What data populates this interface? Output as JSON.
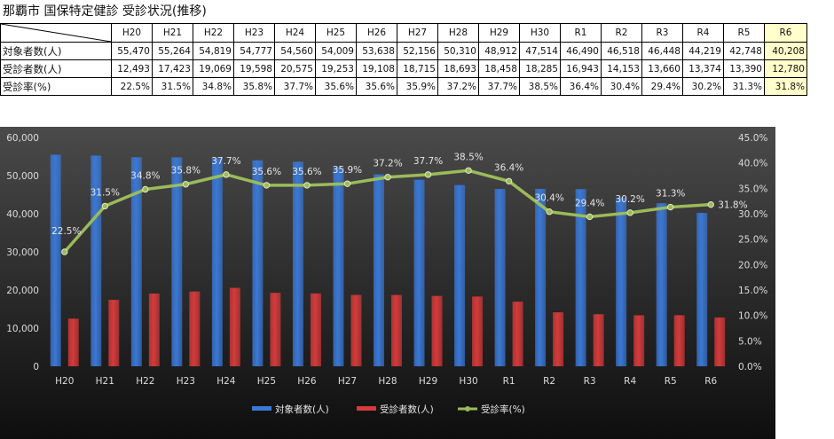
{
  "title": "那覇市 国保特定健診 受診状況(推移)",
  "table": {
    "years": [
      "H20",
      "H21",
      "H22",
      "H23",
      "H24",
      "H25",
      "H26",
      "H27",
      "H28",
      "H29",
      "H30",
      "R1",
      "R2",
      "R3",
      "R4",
      "R5",
      "R6"
    ],
    "rows": [
      {
        "label": "対象者数(人)",
        "values": [
          "55,470",
          "55,264",
          "54,819",
          "54,777",
          "54,560",
          "54,009",
          "53,638",
          "52,156",
          "50,310",
          "48,912",
          "47,514",
          "46,490",
          "46,518",
          "46,448",
          "44,219",
          "42,748",
          "40,208"
        ]
      },
      {
        "label": "受診者数(人)",
        "values": [
          "12,493",
          "17,423",
          "19,069",
          "19,598",
          "20,575",
          "19,253",
          "19,108",
          "18,715",
          "18,693",
          "18,458",
          "18,285",
          "16,943",
          "14,153",
          "13,660",
          "13,374",
          "13,390",
          "12,780"
        ]
      },
      {
        "label": "受診率(%)",
        "values": [
          "22.5%",
          "31.5%",
          "34.8%",
          "35.8%",
          "37.7%",
          "35.6%",
          "35.6%",
          "35.9%",
          "37.2%",
          "37.7%",
          "38.5%",
          "36.4%",
          "30.4%",
          "29.4%",
          "30.2%",
          "31.3%",
          "31.8%"
        ]
      }
    ]
  },
  "chart_data": {
    "type": "bar",
    "categories": [
      "H20",
      "H21",
      "H22",
      "H23",
      "H24",
      "H25",
      "H26",
      "H27",
      "H28",
      "H29",
      "H30",
      "R1",
      "R2",
      "R3",
      "R4",
      "R5",
      "R6"
    ],
    "series": [
      {
        "name": "対象者数(人)",
        "type": "bar",
        "axis": "left",
        "color": "#3a78d6",
        "values": [
          55470,
          55264,
          54819,
          54777,
          54560,
          54009,
          53638,
          52156,
          50310,
          48912,
          47514,
          46490,
          46518,
          46448,
          44219,
          42748,
          40208
        ]
      },
      {
        "name": "受診者数(人)",
        "type": "bar",
        "axis": "left",
        "color": "#d63a3a",
        "values": [
          12493,
          17423,
          19069,
          19598,
          20575,
          19253,
          19108,
          18715,
          18693,
          18458,
          18285,
          16943,
          14153,
          13660,
          13374,
          13390,
          12780
        ]
      },
      {
        "name": "受診率(%)",
        "type": "line",
        "axis": "right",
        "color": "#9bbb59",
        "values": [
          22.5,
          31.5,
          34.8,
          35.8,
          37.7,
          35.6,
          35.6,
          35.9,
          37.2,
          37.7,
          38.5,
          36.4,
          30.4,
          29.4,
          30.2,
          31.3,
          31.8
        ]
      }
    ],
    "data_labels": [
      "22.5%",
      "31.5%",
      "34.8%",
      "35.8%",
      "37.7%",
      "35.6%",
      "35.6%",
      "35.9%",
      "37.2%",
      "37.7%",
      "38.5%",
      "36.4%",
      "30.4%",
      "29.4%",
      "30.2%",
      "31.3%",
      "31.8%"
    ],
    "y_left": {
      "min": 0,
      "max": 60000,
      "step": 10000,
      "ticks": [
        "0",
        "10,000",
        "20,000",
        "30,000",
        "40,000",
        "50,000",
        "60,000"
      ]
    },
    "y_right": {
      "min": 0,
      "max": 45,
      "step": 5,
      "ticks": [
        "0.0%",
        "5.0%",
        "10.0%",
        "15.0%",
        "20.0%",
        "25.0%",
        "30.0%",
        "35.0%",
        "40.0%",
        "45.0%"
      ]
    },
    "legend_position": "bottom",
    "grid": false
  }
}
